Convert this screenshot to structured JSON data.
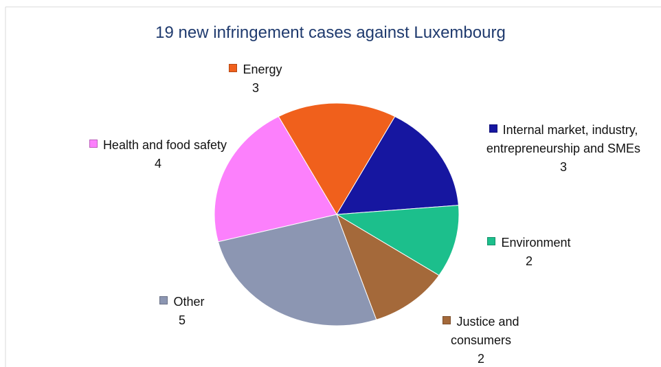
{
  "chart_data": {
    "type": "pie",
    "title": "19 new infringement cases against Luxembourg",
    "categories": [
      "Energy",
      "Internal market, industry, entrepreneurship and SMEs",
      "Environment",
      "Justice and consumers",
      "Other",
      "Health and food safety"
    ],
    "values": [
      3,
      3,
      2,
      2,
      5,
      4
    ],
    "colors": [
      "#f0601c",
      "#1616a0",
      "#1cbf8c",
      "#a4693a",
      "#8c96b2",
      "#fc80fc"
    ]
  }
}
